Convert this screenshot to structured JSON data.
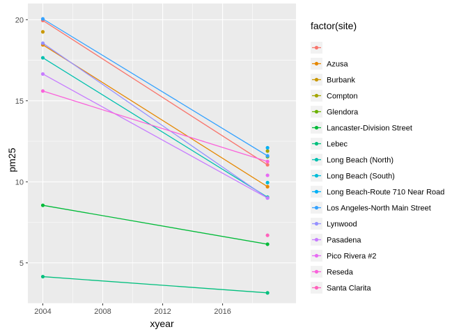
{
  "chart_data": {
    "type": "line",
    "xlabel": "xyear",
    "ylabel": "pm25",
    "xlim": [
      2003.0,
      2020.9
    ],
    "ylim": [
      2.5,
      21.0
    ],
    "xticks": [
      2004,
      2008,
      2012,
      2016
    ],
    "yticks": [
      5,
      10,
      15,
      20
    ],
    "grid": true,
    "legend_title": "factor(site)",
    "legend_position": "right",
    "series": [
      {
        "name": "",
        "color": "#F8766D",
        "x": [
          2004,
          2019
        ],
        "y": [
          19.95,
          11.05
        ]
      },
      {
        "name": "Azusa",
        "color": "#E58700",
        "x": [
          2004,
          2019
        ],
        "y": [
          18.45,
          9.7
        ]
      },
      {
        "name": "Burbank",
        "color": "#C99800",
        "x": [
          2004
        ],
        "y": [
          19.25
        ]
      },
      {
        "name": "Compton",
        "color": "#A3A500",
        "x": [
          2019
        ],
        "y": [
          11.9
        ]
      },
      {
        "name": "Glendora",
        "color": "#6BB100",
        "x": [
          2019
        ],
        "y": [
          11.55
        ]
      },
      {
        "name": "Lancaster-Division Street",
        "color": "#00BA38",
        "x": [
          2004,
          2019
        ],
        "y": [
          8.55,
          6.15
        ]
      },
      {
        "name": "Lebec",
        "color": "#00BF7D",
        "x": [
          2004,
          2019
        ],
        "y": [
          4.15,
          3.15
        ]
      },
      {
        "name": "Long Beach (North)",
        "color": "#00C0AF",
        "x": [
          2004,
          2019
        ],
        "y": [
          17.65,
          9.05
        ]
      },
      {
        "name": "Long Beach (South)",
        "color": "#00BCD8",
        "x": [
          2019
        ],
        "y": [
          9.95
        ]
      },
      {
        "name": "Long Beach-Route 710 Near Road",
        "color": "#00B0F6",
        "x": [
          2019
        ],
        "y": [
          12.1
        ]
      },
      {
        "name": "Los Angeles-North Main Street",
        "color": "#35A2FF",
        "x": [
          2004,
          2019
        ],
        "y": [
          20.05,
          11.6
        ]
      },
      {
        "name": "Lynwood",
        "color": "#9590FF",
        "x": [
          2004,
          2019
        ],
        "y": [
          18.55,
          9.0
        ]
      },
      {
        "name": "Pasadena",
        "color": "#C77CFF",
        "x": [
          2004,
          2019
        ],
        "y": [
          16.65,
          9.0
        ]
      },
      {
        "name": "Pico Rivera #2",
        "color": "#E76BF3",
        "x": [
          2019
        ],
        "y": [
          10.4
        ]
      },
      {
        "name": "Reseda",
        "color": "#FA62DB",
        "x": [
          2004,
          2019
        ],
        "y": [
          15.6,
          11.25
        ]
      },
      {
        "name": "Santa Clarita",
        "color": "#FF62BC",
        "x": [
          2019
        ],
        "y": [
          6.7
        ]
      }
    ]
  }
}
